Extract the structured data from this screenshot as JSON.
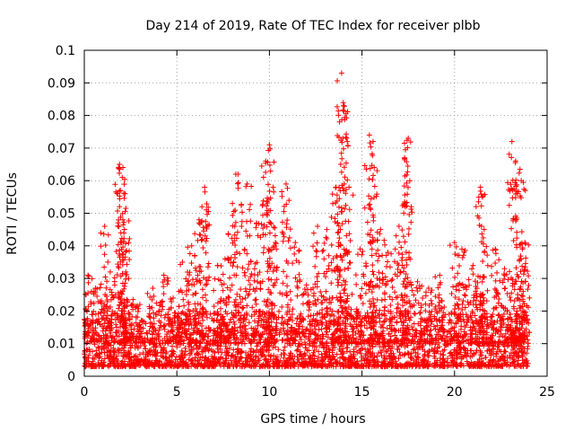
{
  "chart_data": {
    "type": "scatter",
    "title": "Day 214 of 2019, Rate Of TEC Index for receiver plbb",
    "xlabel": "GPS time / hours",
    "ylabel": "ROTI / TECUs",
    "xlim": [
      0,
      25
    ],
    "ylim": [
      0,
      0.1
    ],
    "x_ticks": [
      "0",
      "5",
      "10",
      "15",
      "20",
      "25"
    ],
    "y_ticks": [
      "0",
      "0.01",
      "0.02",
      "0.03",
      "0.04",
      "0.05",
      "0.06",
      "0.07",
      "0.08",
      "0.09",
      "0.1"
    ],
    "grid": true,
    "marker": "+",
    "color": "#ff0000",
    "series": [
      {
        "name": "ROTI",
        "x_range_hours": [
          0,
          24
        ],
        "baseline_band": [
          0.003,
          0.02
        ],
        "spikes": [
          {
            "x": 0.2,
            "y": 0.031
          },
          {
            "x": 0.6,
            "y": 0.027
          },
          {
            "x": 1.1,
            "y": 0.046
          },
          {
            "x": 1.4,
            "y": 0.032
          },
          {
            "x": 1.9,
            "y": 0.065
          },
          {
            "x": 2.05,
            "y": 0.061
          },
          {
            "x": 2.2,
            "y": 0.056
          },
          {
            "x": 2.4,
            "y": 0.03
          },
          {
            "x": 3.0,
            "y": 0.022
          },
          {
            "x": 3.7,
            "y": 0.027
          },
          {
            "x": 4.3,
            "y": 0.031
          },
          {
            "x": 4.8,
            "y": 0.024
          },
          {
            "x": 5.3,
            "y": 0.035
          },
          {
            "x": 5.8,
            "y": 0.04
          },
          {
            "x": 6.2,
            "y": 0.048
          },
          {
            "x": 6.5,
            "y": 0.058
          },
          {
            "x": 7.2,
            "y": 0.034
          },
          {
            "x": 7.6,
            "y": 0.036
          },
          {
            "x": 8.0,
            "y": 0.053
          },
          {
            "x": 8.3,
            "y": 0.062
          },
          {
            "x": 8.8,
            "y": 0.059
          },
          {
            "x": 9.3,
            "y": 0.047
          },
          {
            "x": 9.8,
            "y": 0.066
          },
          {
            "x": 10.0,
            "y": 0.071
          },
          {
            "x": 10.2,
            "y": 0.058
          },
          {
            "x": 10.9,
            "y": 0.059
          },
          {
            "x": 11.4,
            "y": 0.041
          },
          {
            "x": 12.0,
            "y": 0.028
          },
          {
            "x": 12.6,
            "y": 0.046
          },
          {
            "x": 13.1,
            "y": 0.045
          },
          {
            "x": 13.6,
            "y": 0.058
          },
          {
            "x": 13.9,
            "y": 0.093
          },
          {
            "x": 14.0,
            "y": 0.083
          },
          {
            "x": 14.3,
            "y": 0.058
          },
          {
            "x": 14.9,
            "y": 0.039
          },
          {
            "x": 15.4,
            "y": 0.074
          },
          {
            "x": 15.6,
            "y": 0.072
          },
          {
            "x": 16.0,
            "y": 0.045
          },
          {
            "x": 16.4,
            "y": 0.038
          },
          {
            "x": 17.0,
            "y": 0.046
          },
          {
            "x": 17.3,
            "y": 0.067
          },
          {
            "x": 17.5,
            "y": 0.073
          },
          {
            "x": 18.0,
            "y": 0.029
          },
          {
            "x": 18.6,
            "y": 0.027
          },
          {
            "x": 19.2,
            "y": 0.031
          },
          {
            "x": 20.0,
            "y": 0.041
          },
          {
            "x": 20.4,
            "y": 0.039
          },
          {
            "x": 21.0,
            "y": 0.034
          },
          {
            "x": 21.4,
            "y": 0.058
          },
          {
            "x": 21.6,
            "y": 0.045
          },
          {
            "x": 22.2,
            "y": 0.039
          },
          {
            "x": 22.7,
            "y": 0.033
          },
          {
            "x": 23.1,
            "y": 0.072
          },
          {
            "x": 23.3,
            "y": 0.066
          },
          {
            "x": 23.6,
            "y": 0.06
          },
          {
            "x": 23.8,
            "y": 0.041
          }
        ]
      }
    ]
  }
}
